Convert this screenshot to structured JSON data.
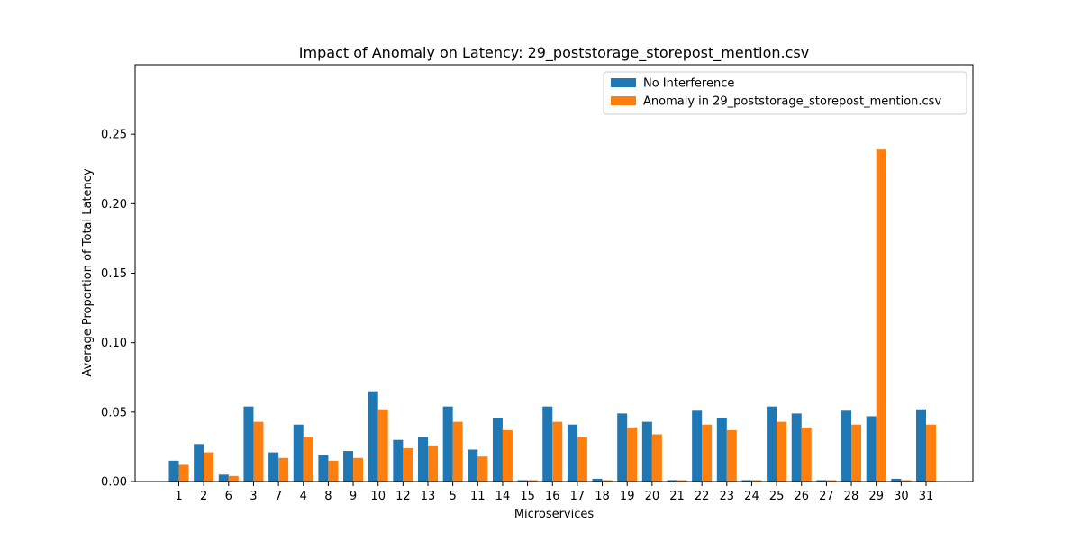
{
  "chart_data": {
    "type": "bar",
    "title": "Impact of Anomaly on Latency: 29_poststorage_storepost_mention.csv",
    "xlabel": "Microservices",
    "ylabel": "Average Proportion of Total Latency",
    "ylim": [
      0,
      0.3
    ],
    "yticks": [
      "0.00",
      "0.05",
      "0.10",
      "0.15",
      "0.20",
      "0.25"
    ],
    "grid": false,
    "legend_position": "top-right",
    "categories": [
      "1",
      "2",
      "6",
      "3",
      "7",
      "4",
      "8",
      "9",
      "10",
      "12",
      "13",
      "5",
      "11",
      "14",
      "15",
      "16",
      "17",
      "18",
      "19",
      "20",
      "21",
      "22",
      "23",
      "24",
      "25",
      "26",
      "27",
      "28",
      "29",
      "30",
      "31"
    ],
    "series": [
      {
        "name": "No Interference",
        "color": "#1f77b4",
        "values": [
          0.015,
          0.027,
          0.005,
          0.054,
          0.021,
          0.041,
          0.019,
          0.022,
          0.065,
          0.03,
          0.032,
          0.054,
          0.023,
          0.046,
          0.001,
          0.054,
          0.041,
          0.002,
          0.049,
          0.043,
          0.001,
          0.051,
          0.046,
          0.001,
          0.054,
          0.049,
          0.001,
          0.051,
          0.047,
          0.002,
          0.052
        ]
      },
      {
        "name": "Anomaly in 29_poststorage_storepost_mention.csv",
        "color": "#ff7f0e",
        "values": [
          0.012,
          0.021,
          0.004,
          0.043,
          0.017,
          0.032,
          0.015,
          0.017,
          0.052,
          0.024,
          0.026,
          0.043,
          0.018,
          0.037,
          0.001,
          0.043,
          0.032,
          0.001,
          0.039,
          0.034,
          0.001,
          0.041,
          0.037,
          0.001,
          0.043,
          0.039,
          0.001,
          0.041,
          0.239,
          0.001,
          0.041
        ]
      }
    ]
  }
}
